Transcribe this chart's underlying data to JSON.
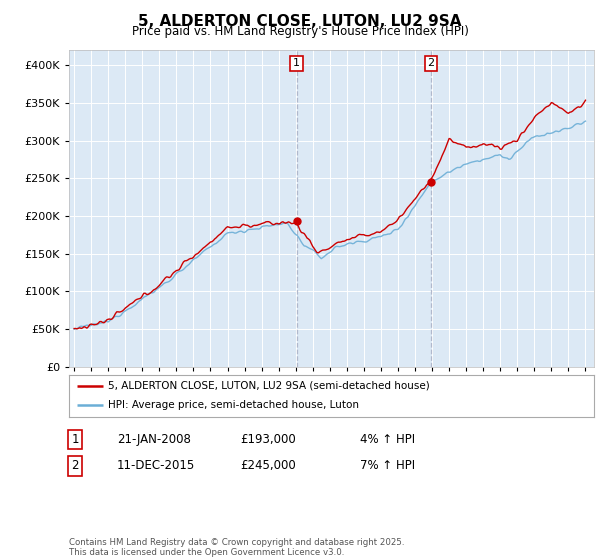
{
  "title": "5, ALDERTON CLOSE, LUTON, LU2 9SA",
  "subtitle": "Price paid vs. HM Land Registry's House Price Index (HPI)",
  "background_color": "#ffffff",
  "plot_bg_color": "#dce9f5",
  "grid_color": "#ffffff",
  "hpi_color": "#6baed6",
  "price_color": "#cc0000",
  "vline_color": "#b0b8cc",
  "marker_color": "#cc0000",
  "sale1_date": "21-JAN-2008",
  "sale1_price": 193000,
  "sale1_year": 2008.055,
  "sale1_pct": "4%",
  "sale2_date": "11-DEC-2015",
  "sale2_price": 245000,
  "sale2_year": 2015.94,
  "sale2_pct": "7%",
  "legend_label_price": "5, ALDERTON CLOSE, LUTON, LU2 9SA (semi-detached house)",
  "legend_label_hpi": "HPI: Average price, semi-detached house, Luton",
  "footer": "Contains HM Land Registry data © Crown copyright and database right 2025.\nThis data is licensed under the Open Government Licence v3.0.",
  "ylim": [
    0,
    420000
  ],
  "yticks": [
    0,
    50000,
    100000,
    150000,
    200000,
    250000,
    300000,
    350000,
    400000
  ],
  "xlim_start": 1994.7,
  "xlim_end": 2025.5
}
